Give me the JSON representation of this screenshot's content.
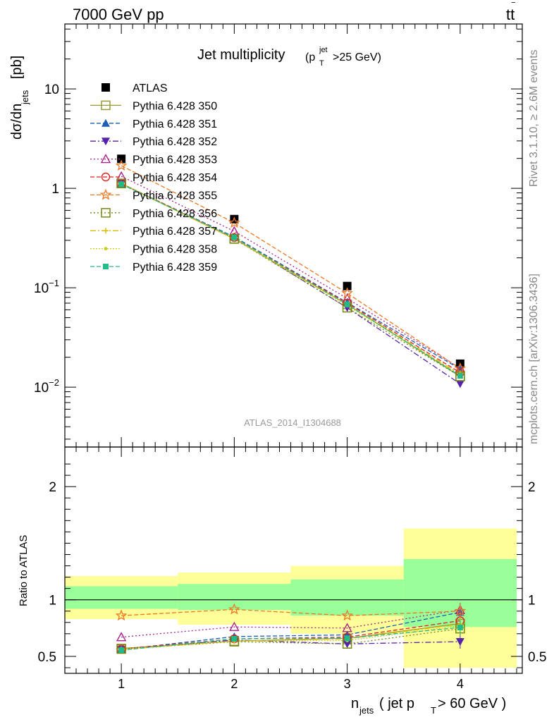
{
  "header": {
    "energy_label": "7000 GeV pp",
    "process_label_main": "tt",
    "process_label_bar": "‾",
    "title_main": "Jet multiplicity",
    "title_paren_open": "(p",
    "title_sup": "jet",
    "title_sub": "T",
    "title_rest": ">25 GeV)",
    "watermark": "ATLAS_2014_I1304688"
  },
  "side_text": {
    "rivet": "Rivet 3.1.10, ≥ 2.6M events",
    "mcplots": "mcplots.cern.ch [arXiv:1306.3436]"
  },
  "axes": {
    "top_ylabel_main": "dσ/dn",
    "top_ylabel_sub": "jets",
    "top_ylabel_unit": " [pb]",
    "bottom_ylabel": "Ratio to ATLAS",
    "xlabel_main": "n",
    "xlabel_sub": "jets",
    "xlabel_mid": " ( jet p",
    "xlabel_sub2": "T",
    "xlabel_end": " > 60 GeV )"
  },
  "chart_data": [
    {
      "type": "scatter",
      "panel": "main",
      "yscale": "log",
      "xlim": [
        0.5,
        4.55
      ],
      "ylim": [
        0.0025,
        45
      ],
      "x": [
        1,
        2,
        3,
        4
      ],
      "y_ticks": [
        {
          "value": 0.01,
          "base": "10",
          "exp": "−2"
        },
        {
          "value": 0.1,
          "base": "10",
          "exp": "−1"
        },
        {
          "value": 1,
          "base": "1",
          "exp": ""
        },
        {
          "value": 10,
          "base": "10",
          "exp": ""
        }
      ],
      "x_ticks": [
        "1",
        "2",
        "3",
        "4"
      ],
      "series": [
        {
          "name": "ATLAS",
          "color": "#000000",
          "marker": "square-filled",
          "dash": "none",
          "values": [
            1.98,
            0.49,
            0.104,
            0.0172
          ]
        },
        {
          "name": "Pythia 6.428 350",
          "color": "#999933",
          "marker": "square-open",
          "dash": "solid",
          "values": [
            1.12,
            0.31,
            0.068,
            0.0128
          ]
        },
        {
          "name": "Pythia 6.428 351",
          "color": "#1a5fb4",
          "marker": "triangle-up-filled",
          "dash": "6,3",
          "values": [
            1.11,
            0.325,
            0.071,
            0.0152
          ]
        },
        {
          "name": "Pythia 6.428 352",
          "color": "#5522aa",
          "marker": "triangle-down-filled",
          "dash": "8,3,2,3",
          "values": [
            1.11,
            0.315,
            0.063,
            0.0108
          ]
        },
        {
          "name": "Pythia 6.428 353",
          "color": "#aa2288",
          "marker": "triangle-up-open",
          "dash": "2,3",
          "values": [
            1.32,
            0.37,
            0.078,
            0.0155
          ]
        },
        {
          "name": "Pythia 6.428 354",
          "color": "#dd2222",
          "marker": "circle-open",
          "dash": "6,3",
          "values": [
            1.12,
            0.32,
            0.07,
            0.014
          ]
        },
        {
          "name": "Pythia 6.428 355",
          "color": "#ee7722",
          "marker": "star-open",
          "dash": "6,3",
          "values": [
            1.69,
            0.45,
            0.088,
            0.0154
          ]
        },
        {
          "name": "Pythia 6.428 356",
          "color": "#778811",
          "marker": "square-open",
          "dash": "2,3",
          "values": [
            1.12,
            0.31,
            0.063,
            0.0128
          ]
        },
        {
          "name": "Pythia 6.428 357",
          "color": "#ddbb00",
          "marker": "cross-small",
          "dash": "8,3,2,3",
          "values": [
            1.11,
            0.31,
            0.068,
            0.0135
          ]
        },
        {
          "name": "Pythia 6.428 358",
          "color": "#cccc22",
          "marker": "dot-small",
          "dash": "2,2",
          "values": [
            1.12,
            0.31,
            0.066,
            0.0132
          ]
        },
        {
          "name": "Pythia 6.428 359",
          "color": "#22bb88",
          "marker": "square-small-filled",
          "dash": "6,3",
          "values": [
            1.1,
            0.32,
            0.068,
            0.013
          ]
        }
      ]
    },
    {
      "type": "scatter",
      "panel": "ratio",
      "yscale": "linear",
      "xlim": [
        0.5,
        4.55
      ],
      "ylim": [
        0.35,
        2.35
      ],
      "ylabel": "Ratio to ATLAS",
      "y_ticks": [
        0.5,
        1,
        2
      ],
      "x_ticks": [
        "1",
        "2",
        "3",
        "4"
      ],
      "reference_line": 1,
      "bands": [
        {
          "xmin": 0.5,
          "xmax": 1.5,
          "inner": [
            0.92,
            1.12
          ],
          "outer": [
            0.83,
            1.21
          ]
        },
        {
          "xmin": 1.5,
          "xmax": 2.5,
          "inner": [
            0.91,
            1.14
          ],
          "outer": [
            0.78,
            1.24
          ]
        },
        {
          "xmin": 2.5,
          "xmax": 3.5,
          "inner": [
            0.86,
            1.18
          ],
          "outer": [
            0.7,
            1.3
          ]
        },
        {
          "xmin": 3.5,
          "xmax": 4.5,
          "inner": [
            0.76,
            1.36
          ],
          "outer": [
            0.4,
            1.63
          ]
        }
      ],
      "x": [
        1,
        2,
        3,
        4
      ],
      "series": [
        {
          "name": "Pythia 6.428 350",
          "values": [
            0.57,
            0.635,
            0.66,
            0.79
          ]
        },
        {
          "name": "Pythia 6.428 351",
          "values": [
            0.56,
            0.675,
            0.69,
            0.89
          ]
        },
        {
          "name": "Pythia 6.428 352",
          "values": [
            0.56,
            0.645,
            0.61,
            0.63
          ]
        },
        {
          "name": "Pythia 6.428 353",
          "values": [
            0.67,
            0.76,
            0.75,
            0.91
          ]
        },
        {
          "name": "Pythia 6.428 354",
          "values": [
            0.565,
            0.655,
            0.67,
            0.815
          ]
        },
        {
          "name": "Pythia 6.428 355",
          "values": [
            0.86,
            0.915,
            0.86,
            0.9
          ]
        },
        {
          "name": "Pythia 6.428 356",
          "values": [
            0.565,
            0.63,
            0.61,
            0.745
          ]
        },
        {
          "name": "Pythia 6.428 357",
          "values": [
            0.56,
            0.635,
            0.655,
            0.785
          ]
        },
        {
          "name": "Pythia 6.428 358",
          "values": [
            0.565,
            0.635,
            0.64,
            0.77
          ]
        },
        {
          "name": "Pythia 6.428 359",
          "values": [
            0.555,
            0.655,
            0.66,
            0.755
          ]
        }
      ]
    }
  ]
}
